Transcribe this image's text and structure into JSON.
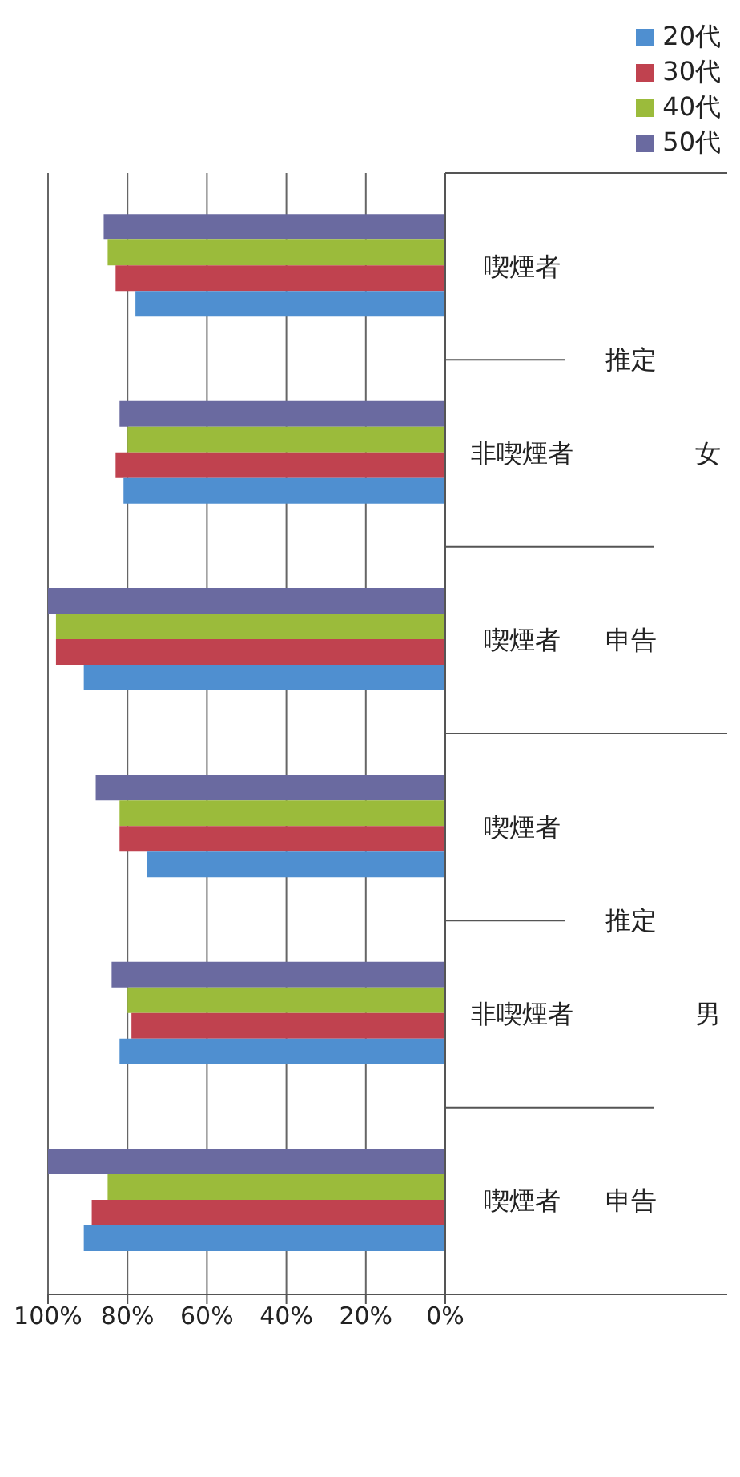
{
  "chart_data": {
    "type": "bar",
    "orientation": "horizontal",
    "categories": [
      "喫煙者",
      "非喫煙者",
      "喫煙者",
      "喫煙者",
      "非喫煙者",
      "喫煙者"
    ],
    "annotations": [
      "推定",
      "申告",
      "女",
      "推定",
      "申告",
      "男"
    ],
    "series": [
      {
        "name": "20代",
        "color": "#4f8fd0",
        "values": [
          78,
          81,
          91,
          75,
          82,
          91
        ]
      },
      {
        "name": "30代",
        "color": "#c0424f",
        "values": [
          83,
          83,
          98,
          82,
          79,
          89
        ]
      },
      {
        "name": "40代",
        "color": "#9bbb3b",
        "values": [
          85,
          80,
          98,
          82,
          80,
          85
        ]
      },
      {
        "name": "50代",
        "color": "#6a6aa0",
        "values": [
          86,
          82,
          100,
          88,
          84,
          100
        ]
      }
    ],
    "xlim": [
      100,
      0
    ],
    "xticks": [
      {
        "value": 100,
        "label": "100%"
      },
      {
        "value": 80,
        "label": "80%"
      },
      {
        "value": 60,
        "label": "60%"
      },
      {
        "value": 40,
        "label": "40%"
      },
      {
        "value": 20,
        "label": "20%"
      },
      {
        "value": 0,
        "label": "0%"
      }
    ],
    "grid": "x",
    "legend": "top right"
  }
}
